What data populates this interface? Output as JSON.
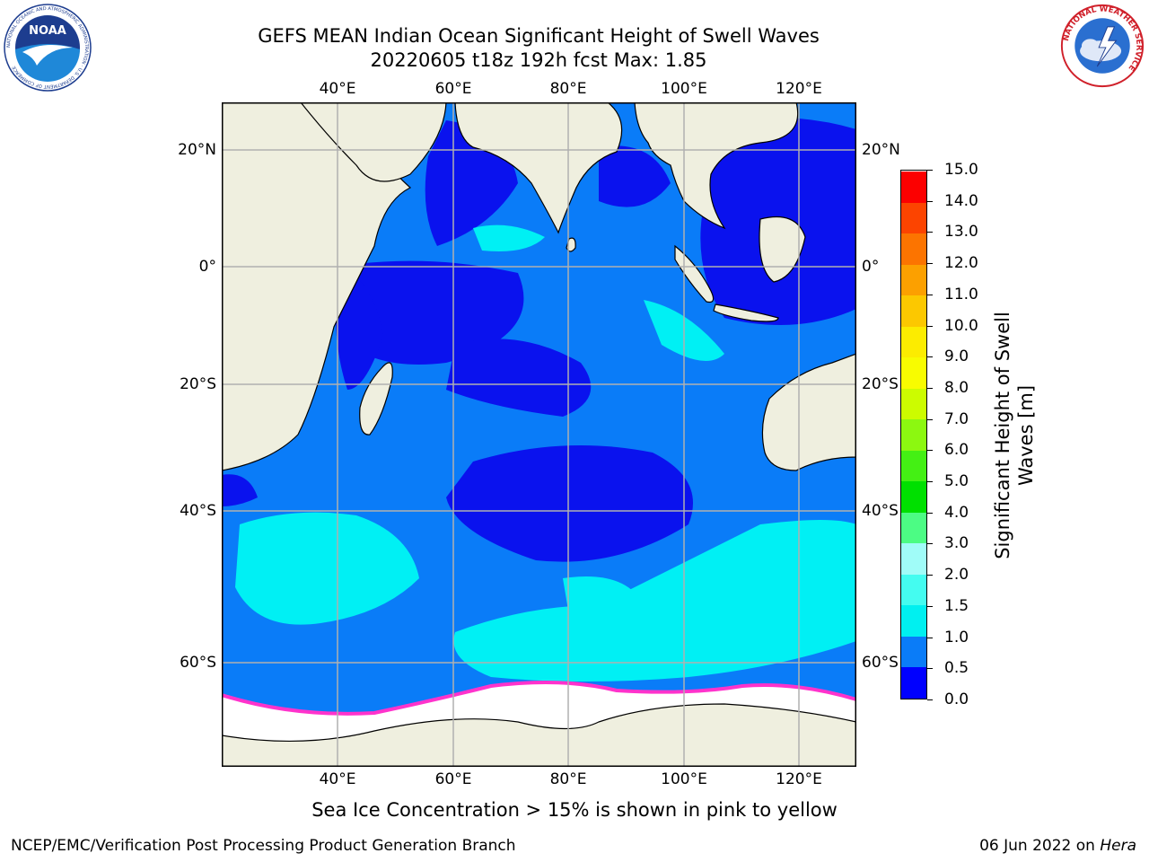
{
  "title_line1": "GEFS MEAN Indian Ocean Significant Height of Swell Waves",
  "title_line2": "20220605 t18z 192h fcst   Max: 1.85",
  "note": "Sea Ice Concentration > 15% is shown in pink to yellow",
  "credit": "NCEP/EMC/Verification Post Processing Product Generation Branch",
  "date": "06 Jun 2022 on",
  "host": "Hera",
  "map": {
    "lon_range": [
      20,
      130
    ],
    "lat_range": [
      -73,
      27
    ],
    "lon_ticks": [
      "40°E",
      "60°E",
      "80°E",
      "100°E",
      "120°E"
    ],
    "lat_ticks": [
      "20°N",
      "0°",
      "20°S",
      "40°S",
      "60°S"
    ],
    "colors": {
      "land": "#efefdf",
      "ocean_deep": "#0a12ee",
      "ocean_mid": "#0a7cf8",
      "ocean_light": "#00f0f4",
      "sea_ice": "#ffffff",
      "ice_edge": "#ff33cc"
    }
  },
  "colorbar": {
    "label_line1": "Significant Height of Swell",
    "label_line2": "Waves [m]",
    "levels": [
      "0.0",
      "0.5",
      "1.0",
      "1.5",
      "2.0",
      "3.0",
      "4.0",
      "5.0",
      "6.0",
      "7.0",
      "8.0",
      "9.0",
      "10.0",
      "11.0",
      "12.0",
      "13.0",
      "14.0",
      "15.0"
    ],
    "colors": [
      "#0000ff",
      "#0a7cf8",
      "#00f0f0",
      "#44fcf0",
      "#a0fcf8",
      "#4cfc84",
      "#00e000",
      "#44f014",
      "#8cf810",
      "#ccfc00",
      "#f8fc00",
      "#fcec00",
      "#fcc800",
      "#fca000",
      "#fc7400",
      "#fc4400",
      "#fc0000"
    ]
  },
  "logos": {
    "noaa_text": "NOAA",
    "noaa_ring_text": "NATIONAL OCEANIC AND ATMOSPHERIC ADMINISTRATION · U.S. DEPARTMENT OF COMMERCE",
    "nws_ring_text": "NATIONAL WEATHER SERVICE"
  }
}
